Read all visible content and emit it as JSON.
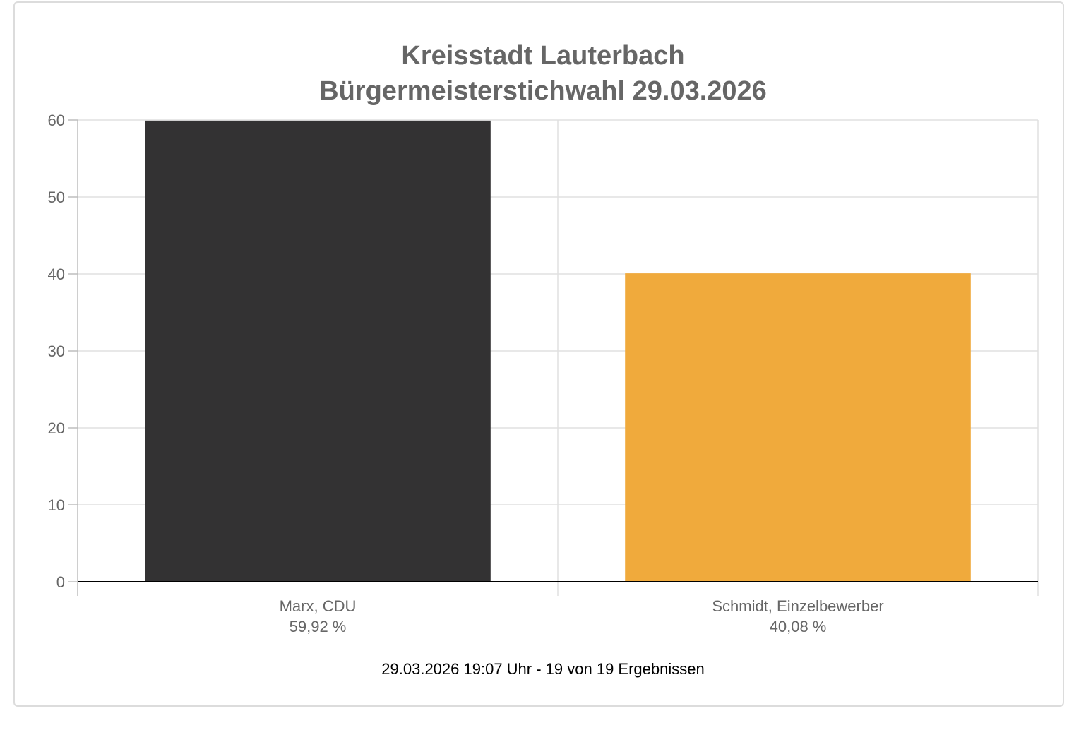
{
  "chart_data": {
    "type": "bar",
    "title": "Kreisstadt Lauterbach",
    "subtitle": "Bürgermeisterstichwahl 29.03.2026",
    "categories": [
      "Marx, CDU",
      "Schmidt, Einzelbewerber"
    ],
    "value_labels": [
      "59,92 %",
      "40,08 %"
    ],
    "values": [
      59.92,
      40.08
    ],
    "colors": [
      "#333233",
      "#f0aa3c"
    ],
    "ylim": [
      0,
      60
    ],
    "yticks": [
      0,
      10,
      20,
      30,
      40,
      50,
      60
    ],
    "xlabel": "",
    "ylabel": "",
    "grid": true,
    "legend": "none"
  },
  "footer": "29.03.2026 19:07 Uhr - 19 von 19 Ergebnissen"
}
